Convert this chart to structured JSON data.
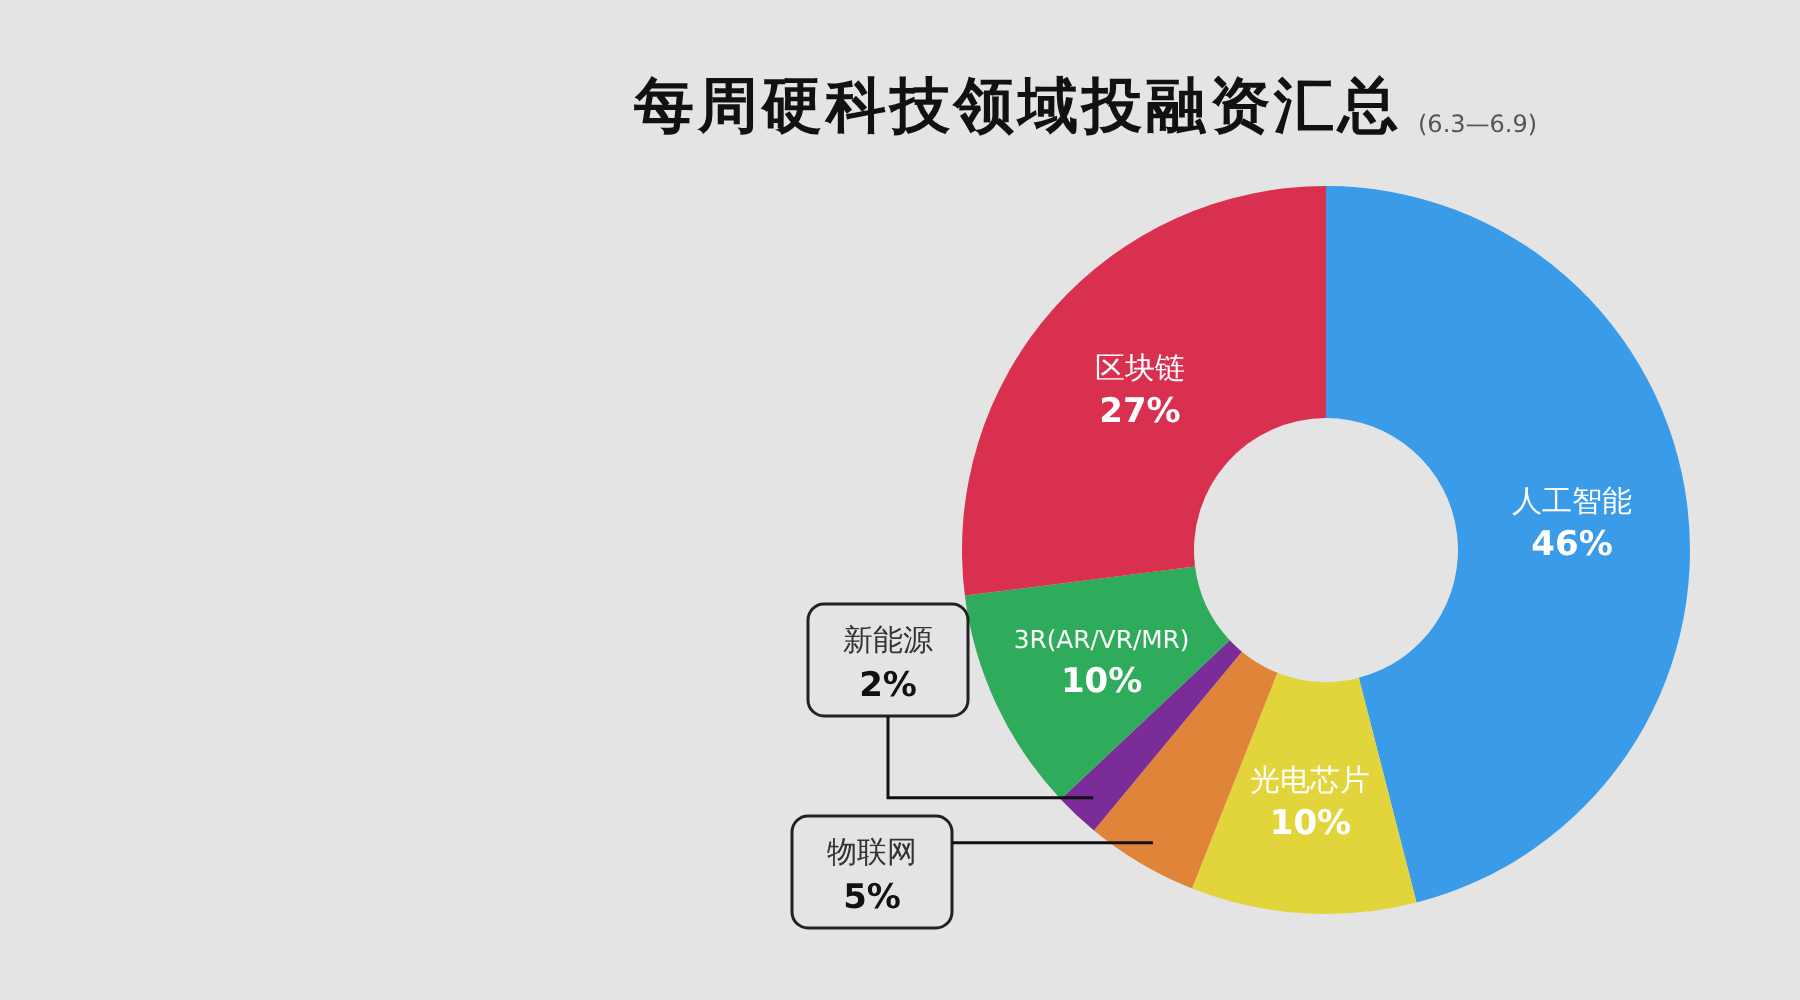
{
  "chart_data": {
    "type": "donut",
    "title": "每周硬科技领域投融资汇总",
    "subtitle": "(6.3—6.9)",
    "categories": [
      "人工智能",
      "光电芯片",
      "物联网",
      "新能源",
      "3R(AR/VR/MR)",
      "区块链"
    ],
    "values": [
      46,
      10,
      5,
      2,
      10,
      27
    ],
    "value_labels": [
      "46%",
      "10%",
      "5%",
      "2%",
      "10%",
      "27%"
    ],
    "colors": [
      "#3a9be9",
      "#e2d53c",
      "#e0843a",
      "#7a2d98",
      "#2eab5b",
      "#d9304f"
    ]
  }
}
